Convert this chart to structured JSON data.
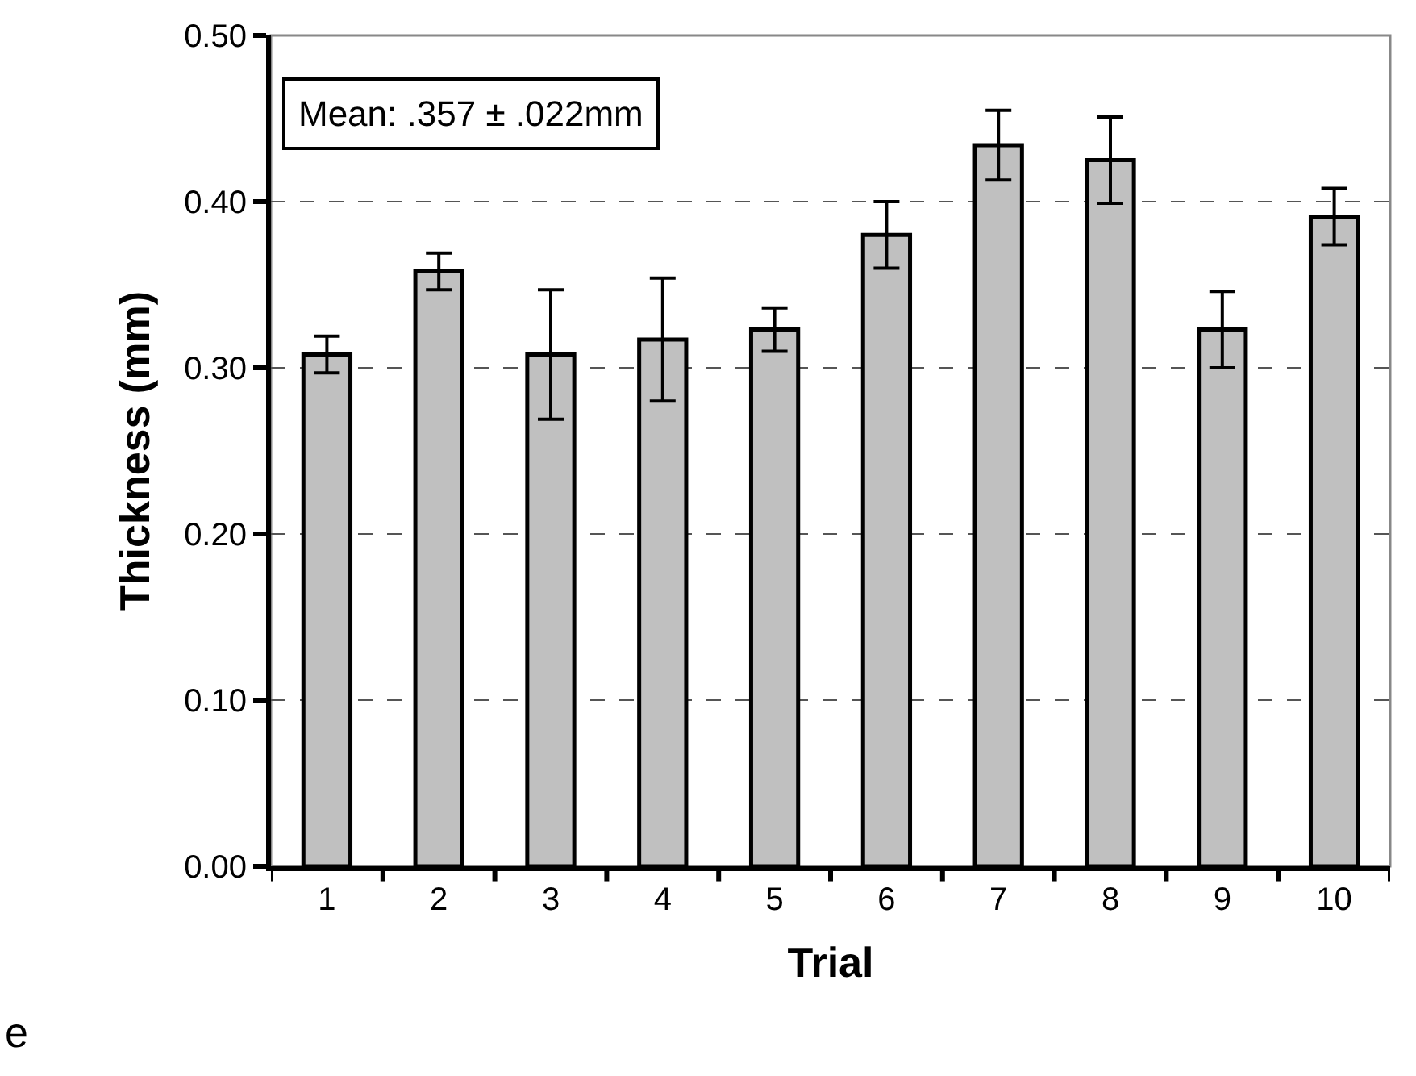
{
  "chart_data": {
    "type": "bar",
    "xlabel": "Trial",
    "ylabel": "Thickness (mm)",
    "categories": [
      "1",
      "2",
      "3",
      "4",
      "5",
      "6",
      "7",
      "8",
      "9",
      "10"
    ],
    "values": [
      0.308,
      0.358,
      0.308,
      0.317,
      0.323,
      0.38,
      0.434,
      0.425,
      0.323,
      0.391
    ],
    "errors": [
      0.011,
      0.011,
      0.039,
      0.037,
      0.013,
      0.02,
      0.021,
      0.026,
      0.023,
      0.017
    ],
    "color": "#c0c0c0",
    "ylim": [
      0,
      0.5
    ],
    "yticks": [
      {
        "value": 0,
        "label": "0.00"
      },
      {
        "value": 0.1,
        "label": "0.10"
      },
      {
        "value": 0.2,
        "label": "0.20"
      },
      {
        "value": 0.3,
        "label": "0.30"
      },
      {
        "value": 0.4,
        "label": "0.40"
      },
      {
        "value": 0.5,
        "label": "0.50"
      }
    ],
    "grid": "y",
    "legend": false,
    "annotations": [
      "Mean: .357 ± .022mm",
      "e"
    ]
  }
}
